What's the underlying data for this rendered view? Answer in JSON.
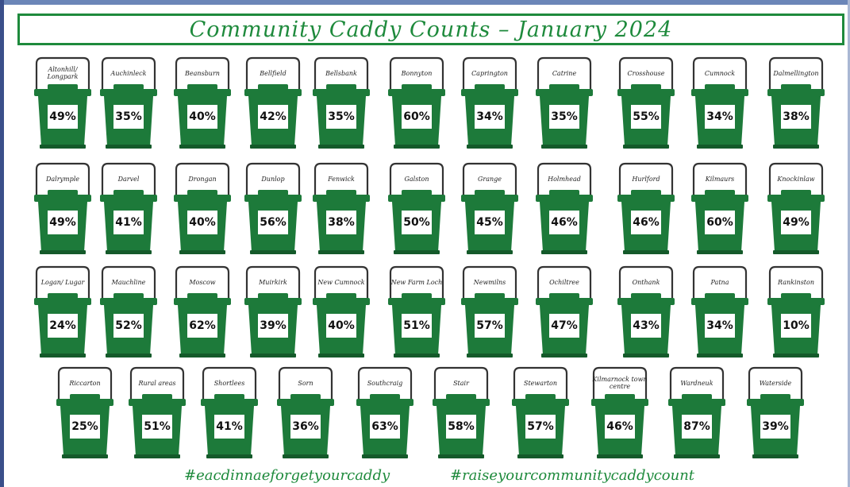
{
  "title": "Community Caddy Counts – January 2024",
  "brand_color": "#1e8a3c",
  "caddy_color": "#1d7a3a",
  "hashtags": [
    "#eacdinnaeforgetyourcaddy",
    "#raiseyourcommunitycaddycount"
  ],
  "caddies": [
    {
      "name": "Altonhill/ Longpark",
      "percent": "49%"
    },
    {
      "name": "Auchinleck",
      "percent": "35%"
    },
    {
      "name": "Beansburn",
      "percent": "40%"
    },
    {
      "name": "Bellfield",
      "percent": "42%"
    },
    {
      "name": "Bellsbank",
      "percent": "35%"
    },
    {
      "name": "Bonnyton",
      "percent": "60%"
    },
    {
      "name": "Caprington",
      "percent": "34%"
    },
    {
      "name": "Catrine",
      "percent": "35%"
    },
    {
      "name": "Crosshouse",
      "percent": "55%"
    },
    {
      "name": "Cumnock",
      "percent": "34%"
    },
    {
      "name": "Dalmellington",
      "percent": "38%"
    },
    {
      "name": "Dalrymple",
      "percent": "49%"
    },
    {
      "name": "Darvel",
      "percent": "41%"
    },
    {
      "name": "Drongan",
      "percent": "40%"
    },
    {
      "name": "Dunlop",
      "percent": "56%"
    },
    {
      "name": "Fenwick",
      "percent": "38%"
    },
    {
      "name": "Galston",
      "percent": "50%"
    },
    {
      "name": "Grange",
      "percent": "45%"
    },
    {
      "name": "Holmhead",
      "percent": "46%"
    },
    {
      "name": "Hurlford",
      "percent": "46%"
    },
    {
      "name": "Kilmaurs",
      "percent": "60%"
    },
    {
      "name": "Knockinlaw",
      "percent": "49%"
    },
    {
      "name": "Logan/ Lugar",
      "percent": "24%"
    },
    {
      "name": "Mauchline",
      "percent": "52%"
    },
    {
      "name": "Moscow",
      "percent": "62%"
    },
    {
      "name": "Muirkirk",
      "percent": "39%"
    },
    {
      "name": "New Cumnock",
      "percent": "40%"
    },
    {
      "name": "New Farm Loch",
      "percent": "51%"
    },
    {
      "name": "Newmilns",
      "percent": "57%"
    },
    {
      "name": "Ochiltree",
      "percent": "47%"
    },
    {
      "name": "Onthank",
      "percent": "43%"
    },
    {
      "name": "Patna",
      "percent": "34%"
    },
    {
      "name": "Rankinston",
      "percent": "10%"
    },
    {
      "name": "Riccarton",
      "percent": "25%"
    },
    {
      "name": "Rural areas",
      "percent": "51%"
    },
    {
      "name": "Shortlees",
      "percent": "41%"
    },
    {
      "name": "Sorn",
      "percent": "36%"
    },
    {
      "name": "Southcraig",
      "percent": "63%"
    },
    {
      "name": "Stair",
      "percent": "58%"
    },
    {
      "name": "Stewarton",
      "percent": "57%"
    },
    {
      "name": "Kilmarnock town centre",
      "percent": "46%"
    },
    {
      "name": "Wardneuk",
      "percent": "87%"
    },
    {
      "name": "Waterside",
      "percent": "39%"
    }
  ]
}
